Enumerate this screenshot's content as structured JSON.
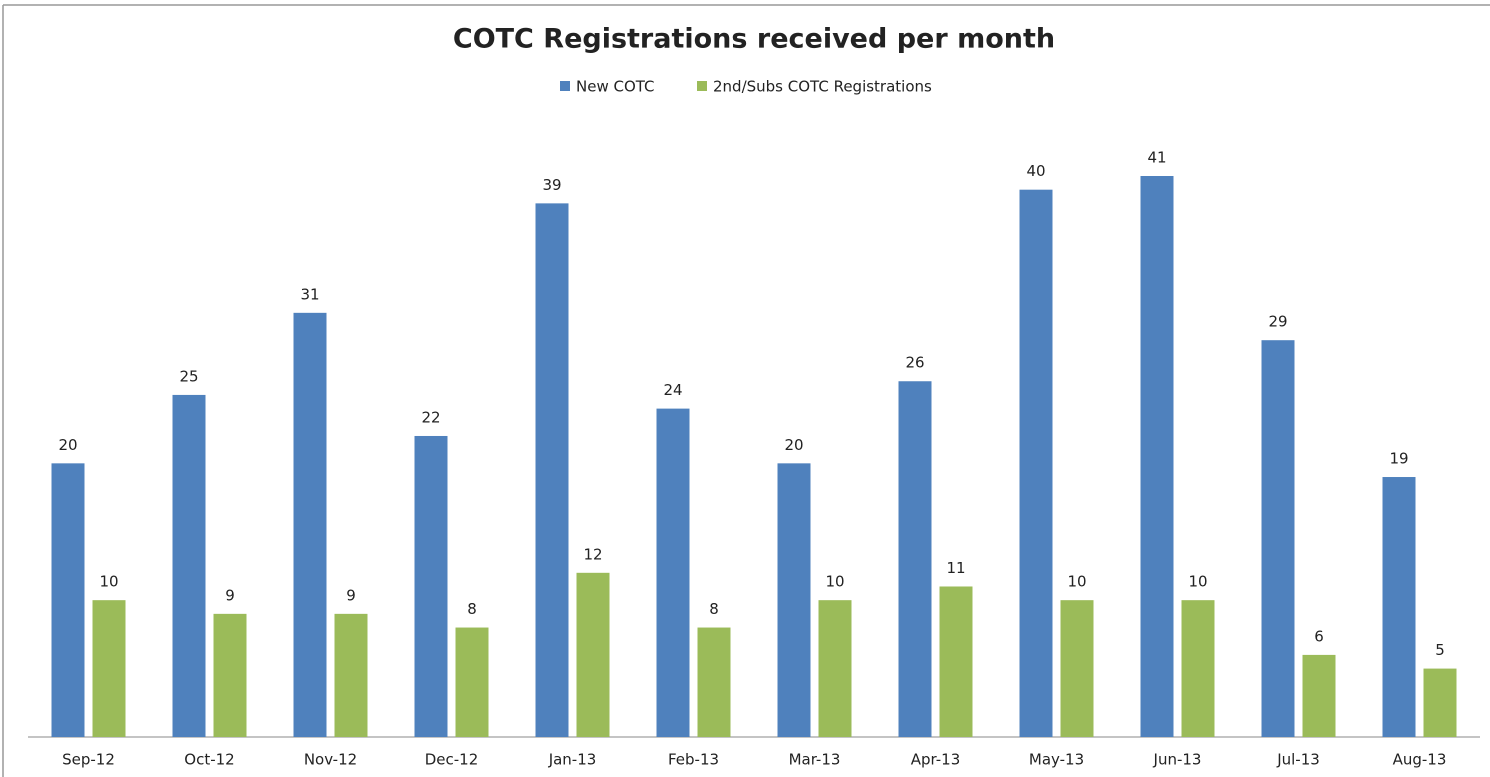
{
  "chart_data": {
    "type": "bar",
    "title": "COTC Registrations received per month",
    "categories": [
      "Sep-12",
      "Oct-12",
      "Nov-12",
      "Dec-12",
      "Jan-13",
      "Feb-13",
      "Mar-13",
      "Apr-13",
      "May-13",
      "Jun-13",
      "Jul-13",
      "Aug-13"
    ],
    "series": [
      {
        "name": "New COTC",
        "color": "#4f81bd",
        "values": [
          20,
          25,
          31,
          22,
          39,
          24,
          20,
          26,
          40,
          41,
          29,
          19
        ]
      },
      {
        "name": "2nd/Subs COTC Registrations",
        "color": "#9bbb59",
        "values": [
          10,
          9,
          9,
          8,
          12,
          8,
          10,
          11,
          10,
          10,
          6,
          5
        ]
      }
    ],
    "legend": "top"
  }
}
